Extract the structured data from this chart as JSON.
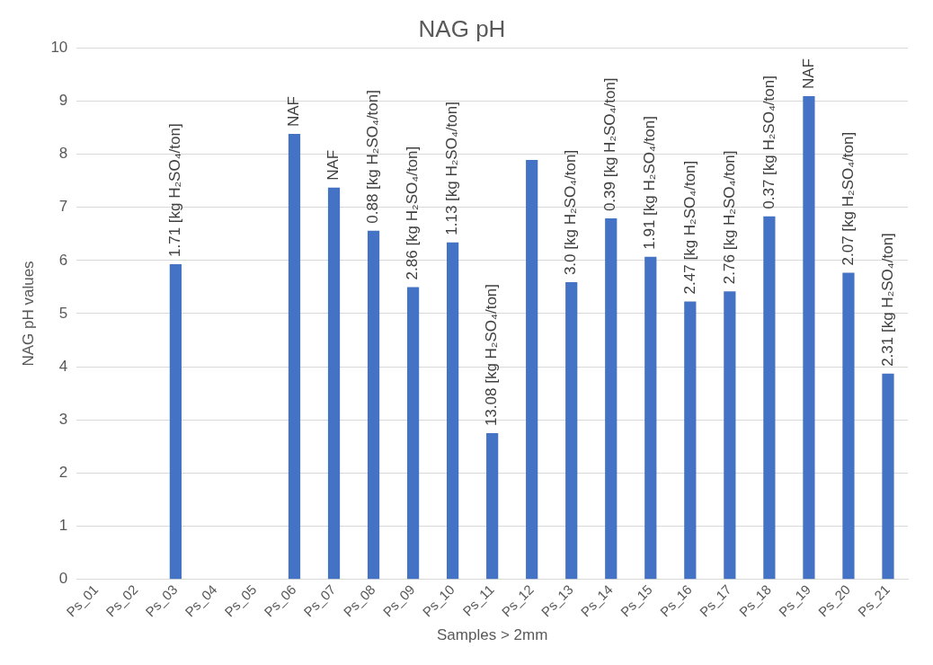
{
  "chart_data": {
    "type": "bar",
    "title": "NAG pH",
    "xlabel": "Samples > 2mm",
    "ylabel": "NAG pH values",
    "categories": [
      "Ps_01",
      "Ps_02",
      "Ps_03",
      "Ps_04",
      "Ps_05",
      "Ps_06",
      "Ps_07",
      "Ps_08",
      "Ps_09",
      "Ps_10",
      "Ps_11",
      "Ps_12",
      "Ps_13",
      "Ps_14",
      "Ps_15",
      "Ps_16",
      "Ps_17",
      "Ps_18",
      "Ps_19",
      "Ps_20",
      "Ps_21"
    ],
    "values": [
      null,
      null,
      5.93,
      null,
      null,
      8.38,
      7.37,
      6.56,
      5.5,
      6.34,
      2.75,
      7.89,
      5.59,
      6.79,
      6.07,
      5.23,
      5.42,
      6.83,
      9.09,
      5.77,
      3.87
    ],
    "annotations": [
      {
        "text": "1.71 [kg H₂SO₄/ton]",
        "x": "Ps_03",
        "y": 5.93
      },
      {
        "text": "NAF",
        "x": "Ps_06",
        "y": 8.38
      },
      {
        "text": "NAF",
        "x": "Ps_07",
        "y": 7.37
      },
      {
        "text": "0.88 [kg H₂SO₄/ton]",
        "x": "Ps_08",
        "y": 6.56
      },
      {
        "text": "2.86 [kg H₂SO₄/ton]",
        "x": "Ps_09",
        "y": 5.5
      },
      {
        "text": "1.13 [kg H₂SO₄/ton]",
        "x": "Ps_10",
        "y": 6.34
      },
      {
        "text": "13.08 [kg H₂SO₄/ton]",
        "x": "Ps_11",
        "y": 2.75
      },
      {
        "text": "3.0 [kg H₂SO₄/ton]",
        "x": "Ps_13",
        "y": 5.59
      },
      {
        "text": "0.39 [kg H₂SO₄/ton]",
        "x": "Ps_14",
        "y": 6.79
      },
      {
        "text": "1.91 [kg H₂SO₄/ton]",
        "x": "Ps_15",
        "y": 6.07
      },
      {
        "text": "2.47 [kg H₂SO₄/ton]",
        "x": "Ps_16",
        "y": 5.23
      },
      {
        "text": "2.76 [kg H₂SO₄/ton]",
        "x": "Ps_17",
        "y": 5.42
      },
      {
        "text": "0.37 [kg H₂SO₄/ton]",
        "x": "Ps_18",
        "y": 6.83
      },
      {
        "text": "NAF",
        "x": "Ps_19",
        "y": 9.09
      },
      {
        "text": "2.07 [kg H₂SO₄/ton]",
        "x": "Ps_20",
        "y": 5.77
      },
      {
        "text": "2.31 [kg H₂SO₄/ton]",
        "x": "Ps_21",
        "y": 3.87
      }
    ],
    "color": "#4472c4",
    "ylim": [
      0,
      10
    ],
    "yticks": [
      0,
      1,
      2,
      3,
      4,
      5,
      6,
      7,
      8,
      9,
      10
    ],
    "grid": "y",
    "legend": false
  }
}
